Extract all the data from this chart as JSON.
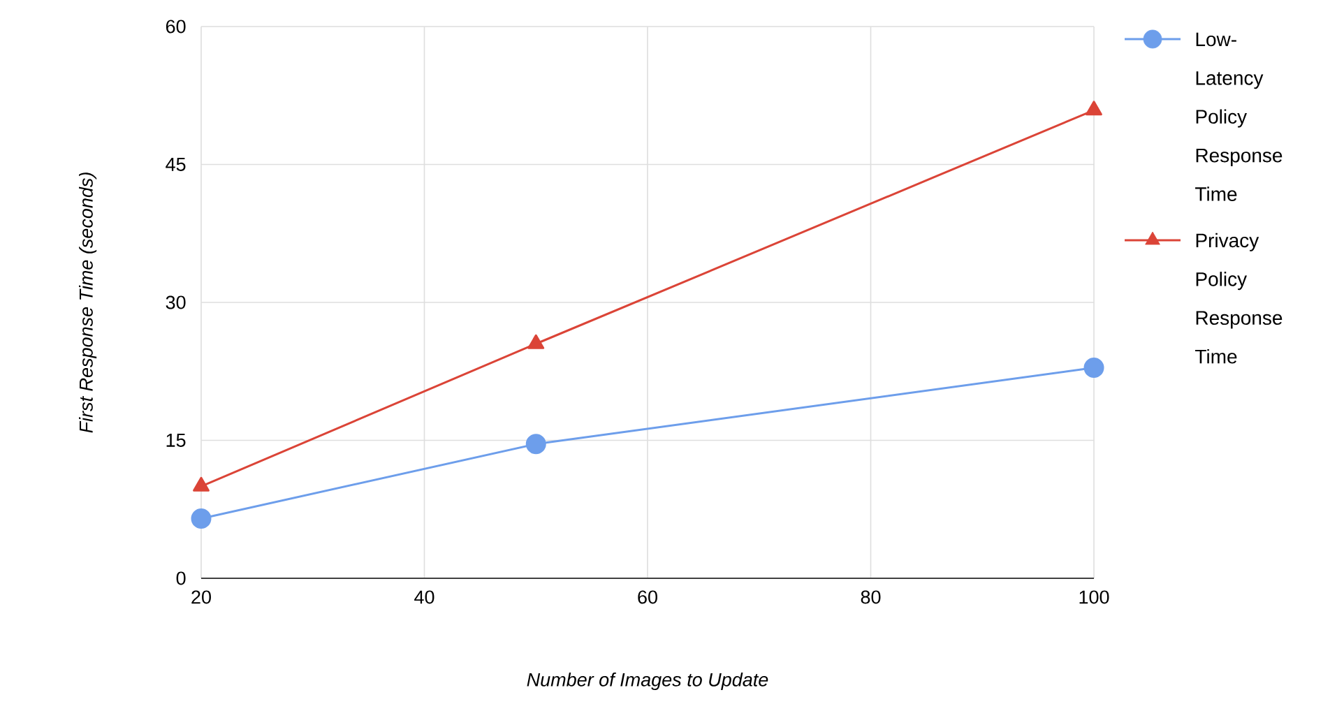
{
  "chart_data": {
    "type": "line",
    "xlabel": "Number of Images to Update",
    "ylabel": "First Response Time (seconds)",
    "x": [
      20,
      50,
      100
    ],
    "series": [
      {
        "name": "Low-Latency Policy Response Time",
        "color": "#6d9eeb",
        "marker": "circle",
        "values": [
          6.5,
          14.6,
          22.9
        ]
      },
      {
        "name": "Privacy Policy Response Time",
        "color": "#db4437",
        "marker": "triangle",
        "values": [
          10.0,
          25.5,
          50.9
        ]
      }
    ],
    "xlim": [
      20,
      100
    ],
    "xticks": [
      20,
      40,
      60,
      80,
      100
    ],
    "ylim": [
      0,
      60
    ],
    "yticks": [
      0,
      15,
      30,
      45,
      60
    ],
    "grid": true,
    "legend": "top right",
    "line_style": "solid"
  }
}
